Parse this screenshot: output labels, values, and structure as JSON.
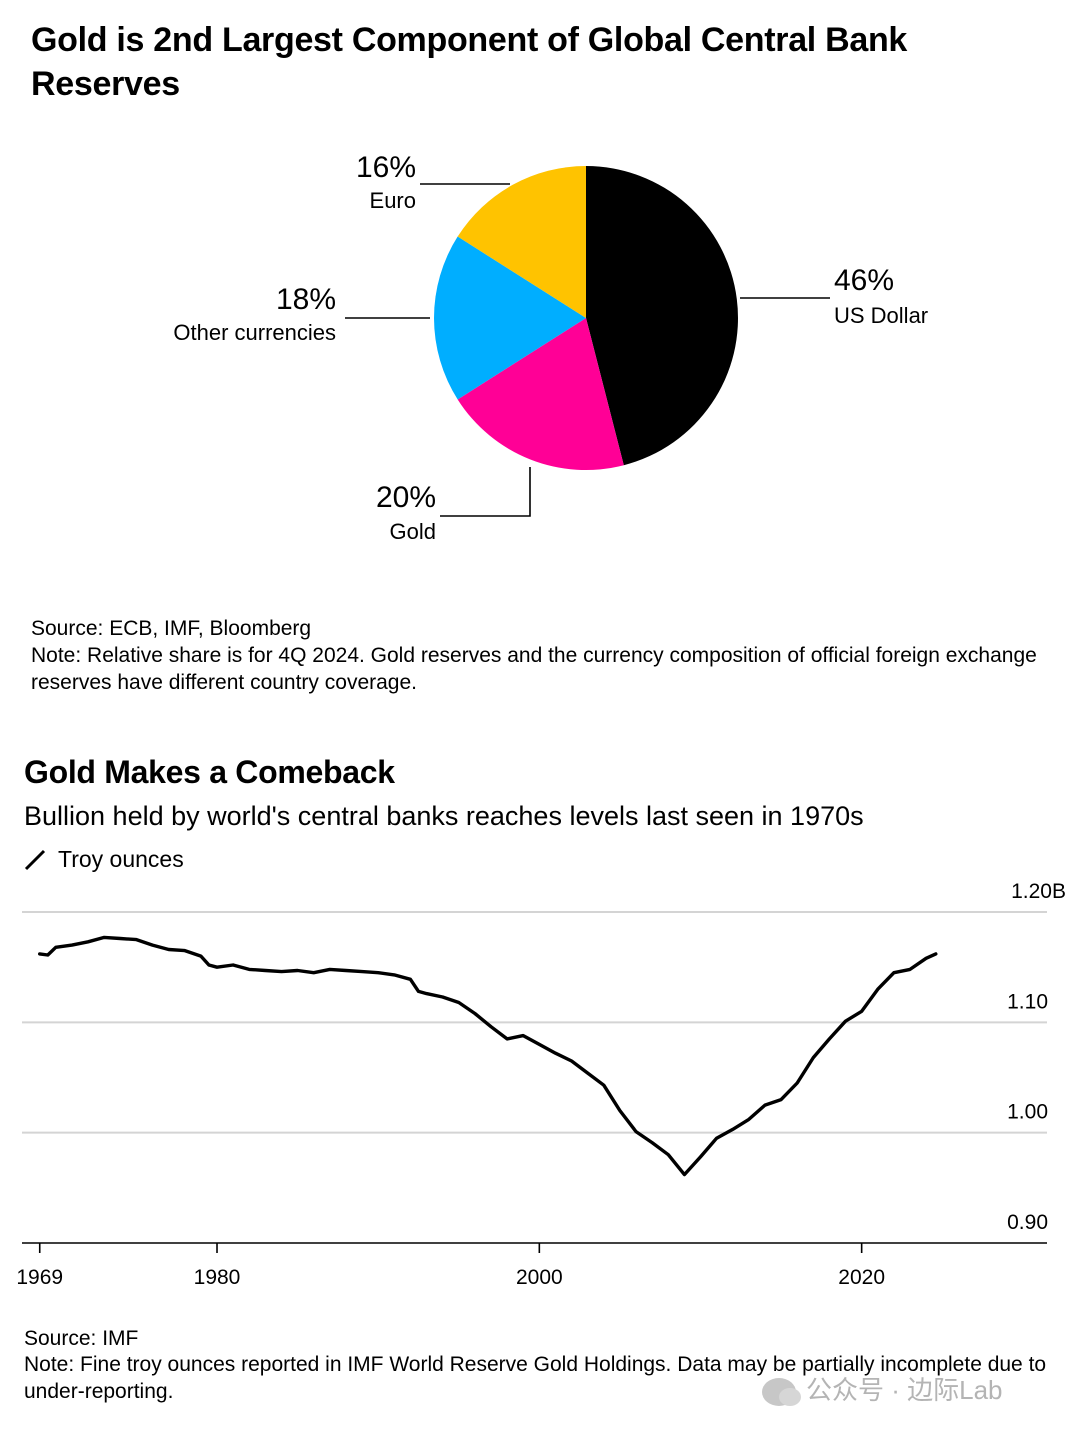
{
  "chart_data": [
    {
      "type": "pie",
      "title": "Gold is 2nd Largest Component of Global Central Bank Reserves",
      "slices": [
        {
          "label": "US Dollar",
          "value": 46,
          "display": "46%",
          "color": "#000000"
        },
        {
          "label": "Gold",
          "value": 20,
          "display": "20%",
          "color": "#ff0096"
        },
        {
          "label": "Other currencies",
          "value": 18,
          "display": "18%",
          "color": "#00aeff"
        },
        {
          "label": "Euro",
          "value": 16,
          "display": "16%",
          "color": "#ffc300"
        }
      ],
      "source": "Source: ECB, IMF, Bloomberg",
      "note": "Note: Relative share is for 4Q 2024. Gold reserves and the currency composition of official foreign exchange reserves have different country coverage."
    },
    {
      "type": "line",
      "title": "Gold Makes a Comeback",
      "subtitle": "Bullion held by world's central banks reaches levels last seen in 1970s",
      "legend": "Troy ounces",
      "x_ticks": [
        "1969",
        "1980",
        "2000",
        "2020"
      ],
      "x_tick_values": [
        1969,
        1980,
        2000,
        2020
      ],
      "y_ticks": [
        "0.90",
        "1.00",
        "1.10",
        "1.20B"
      ],
      "y_tick_values": [
        0.9,
        1.0,
        1.1,
        1.2
      ],
      "xlim": [
        1967.9,
        2031.5
      ],
      "ylim": [
        0.9,
        1.2
      ],
      "series": [
        {
          "color": "#000000",
          "x": [
            1969,
            1969.5,
            1970,
            1971,
            1972,
            1973,
            1974,
            1975,
            1976,
            1977,
            1978,
            1979,
            1979.5,
            1980,
            1981,
            1982,
            1983,
            1984,
            1985,
            1986,
            1987,
            1988,
            1989,
            1990,
            1991,
            1992,
            1992.5,
            1993,
            1994,
            1995,
            1996,
            1997,
            1998,
            1999,
            2000,
            2001,
            2002,
            2003,
            2004,
            2005,
            2006,
            2007,
            2008,
            2009,
            2010,
            2011,
            2012,
            2013,
            2014,
            2015,
            2016,
            2017,
            2018,
            2019,
            2020,
            2021,
            2022,
            2023,
            2024,
            2024.6
          ],
          "y": [
            1.162,
            1.161,
            1.168,
            1.17,
            1.173,
            1.177,
            1.176,
            1.175,
            1.17,
            1.166,
            1.165,
            1.16,
            1.152,
            1.15,
            1.152,
            1.148,
            1.147,
            1.146,
            1.147,
            1.145,
            1.148,
            1.147,
            1.146,
            1.145,
            1.143,
            1.139,
            1.128,
            1.126,
            1.123,
            1.118,
            1.108,
            1.096,
            1.085,
            1.088,
            1.08,
            1.072,
            1.065,
            1.054,
            1.043,
            1.02,
            1.001,
            0.991,
            0.98,
            0.962,
            0.978,
            0.995,
            1.003,
            1.012,
            1.025,
            1.03,
            1.045,
            1.068,
            1.085,
            1.101,
            1.11,
            1.13,
            1.145,
            1.148,
            1.158,
            1.162
          ]
        }
      ],
      "source": "Source: IMF",
      "note": "Note: Fine troy ounces reported in IMF World Reserve Gold Holdings. Data may be partially incomplete due to under-reporting."
    }
  ],
  "watermark": "公众号 · 边际Lab"
}
